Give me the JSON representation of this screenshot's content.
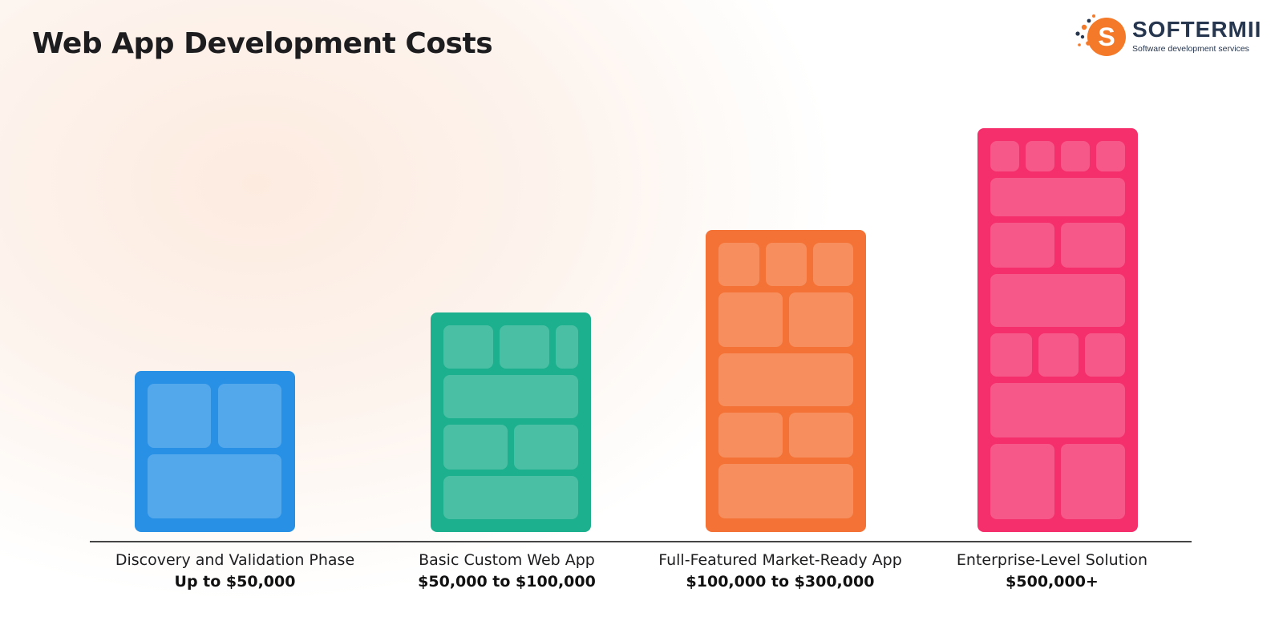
{
  "header": {
    "title": "Web App Development Costs"
  },
  "logo": {
    "name": "SOFTERMII",
    "tagline": "Software development services",
    "letter": "S"
  },
  "chart_data": {
    "type": "bar",
    "title": "Web App Development Costs",
    "categories": [
      "Discovery and Validation Phase",
      "Basic Custom Web App",
      "Full-Featured Market-Ready App",
      "Enterprise-Level Solution"
    ],
    "value_labels": [
      "Up to $50,000",
      "$50,000 to $100,000",
      "$100,000 to $300,000",
      "$500,000+"
    ],
    "values": [
      50000,
      100000,
      300000,
      500000
    ],
    "colors": [
      "#2891e6",
      "#1db08e",
      "#f47235",
      "#f42f6c"
    ],
    "grid": false,
    "legend": "none"
  }
}
